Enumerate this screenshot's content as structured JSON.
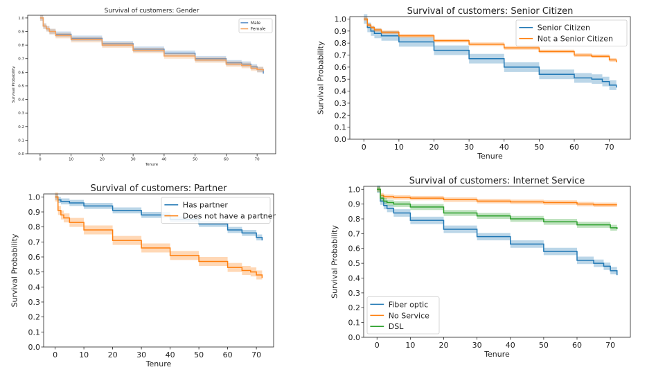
{
  "chart_data": [
    {
      "type": "line",
      "title": "Survival of customers: Gender",
      "xlabel": "Tenure",
      "ylabel": "Survival Probability",
      "xlim": [
        -4,
        76
      ],
      "ylim": [
        0,
        1.02
      ],
      "xticks": [
        0,
        10,
        20,
        30,
        40,
        50,
        60,
        70
      ],
      "yticks": [
        0.0,
        0.1,
        0.2,
        0.3,
        0.4,
        0.5,
        0.6,
        0.7,
        0.8,
        0.9,
        1.0
      ],
      "legend_position": "top-right",
      "series": [
        {
          "name": "Male",
          "color": "#5b8fc7",
          "x": [
            0,
            1,
            2,
            3,
            5,
            10,
            20,
            30,
            40,
            50,
            60,
            65,
            68,
            70,
            72
          ],
          "y": [
            1.0,
            0.94,
            0.92,
            0.9,
            0.88,
            0.85,
            0.81,
            0.77,
            0.74,
            0.7,
            0.67,
            0.66,
            0.64,
            0.62,
            0.59
          ],
          "band": 0.02
        },
        {
          "name": "Female",
          "color": "#f4a15d",
          "x": [
            0,
            1,
            2,
            3,
            5,
            10,
            20,
            30,
            40,
            50,
            60,
            65,
            68,
            70,
            72
          ],
          "y": [
            1.0,
            0.94,
            0.92,
            0.9,
            0.87,
            0.84,
            0.8,
            0.76,
            0.72,
            0.69,
            0.66,
            0.65,
            0.63,
            0.62,
            0.61
          ],
          "band": 0.02
        }
      ]
    },
    {
      "type": "line",
      "title": "Survival of customers: Senior Citizen",
      "xlabel": "Tenure",
      "ylabel": "Survival Probability",
      "xlim": [
        -4,
        76
      ],
      "ylim": [
        0,
        1.02
      ],
      "xticks": [
        0,
        10,
        20,
        30,
        40,
        50,
        60,
        70
      ],
      "yticks": [
        0.0,
        0.1,
        0.2,
        0.3,
        0.4,
        0.5,
        0.6,
        0.7,
        0.8,
        0.9,
        1.0
      ],
      "legend_position": "top-right",
      "series": [
        {
          "name": "Senior Citizen",
          "color": "#1f77b4",
          "x": [
            0,
            1,
            2,
            3,
            5,
            10,
            20,
            30,
            40,
            50,
            60,
            65,
            68,
            70,
            72
          ],
          "y": [
            1.0,
            0.93,
            0.9,
            0.88,
            0.86,
            0.81,
            0.74,
            0.67,
            0.6,
            0.54,
            0.51,
            0.5,
            0.48,
            0.45,
            0.43
          ],
          "band": 0.04
        },
        {
          "name": "Not a Senior Citizen",
          "color": "#ff7f0e",
          "x": [
            0,
            1,
            2,
            3,
            5,
            10,
            20,
            30,
            40,
            50,
            60,
            65,
            70,
            72
          ],
          "y": [
            1.0,
            0.95,
            0.93,
            0.91,
            0.89,
            0.86,
            0.82,
            0.79,
            0.76,
            0.73,
            0.7,
            0.69,
            0.66,
            0.64
          ],
          "band": 0.015
        }
      ]
    },
    {
      "type": "line",
      "title": "Survival of customers: Partner",
      "xlabel": "Tenure",
      "ylabel": "Survival Probability",
      "xlim": [
        -4,
        76
      ],
      "ylim": [
        0,
        1.02
      ],
      "xticks": [
        0,
        10,
        20,
        30,
        40,
        50,
        60,
        70
      ],
      "yticks": [
        0.0,
        0.1,
        0.2,
        0.3,
        0.4,
        0.5,
        0.6,
        0.7,
        0.8,
        0.9,
        1.0
      ],
      "legend_position": "top-right",
      "series": [
        {
          "name": "Has partner",
          "color": "#1f77b4",
          "x": [
            0,
            1,
            2,
            5,
            10,
            20,
            30,
            40,
            50,
            60,
            65,
            70,
            72
          ],
          "y": [
            1.0,
            0.98,
            0.97,
            0.96,
            0.94,
            0.91,
            0.88,
            0.85,
            0.82,
            0.78,
            0.76,
            0.73,
            0.71
          ],
          "band": 0.02
        },
        {
          "name": "Does not have a partner",
          "color": "#ff7f0e",
          "x": [
            0,
            1,
            2,
            3,
            5,
            10,
            20,
            30,
            40,
            50,
            60,
            65,
            68,
            70,
            72
          ],
          "y": [
            1.0,
            0.91,
            0.88,
            0.86,
            0.83,
            0.78,
            0.71,
            0.66,
            0.61,
            0.57,
            0.53,
            0.51,
            0.5,
            0.48,
            0.46
          ],
          "band": 0.03
        }
      ]
    },
    {
      "type": "line",
      "title": "Survival of customers: Internet Service",
      "xlabel": "Tenure",
      "ylabel": "Survival Probability",
      "xlim": [
        -4,
        76
      ],
      "ylim": [
        0,
        1.02
      ],
      "xticks": [
        0,
        10,
        20,
        30,
        40,
        50,
        60,
        70
      ],
      "yticks": [
        0.0,
        0.1,
        0.2,
        0.3,
        0.4,
        0.5,
        0.6,
        0.7,
        0.8,
        0.9,
        1.0
      ],
      "legend_position": "bottom-left",
      "series": [
        {
          "name": "Fiber optic",
          "color": "#1f77b4",
          "x": [
            0,
            1,
            2,
            3,
            5,
            10,
            20,
            30,
            40,
            50,
            60,
            65,
            68,
            70,
            72
          ],
          "y": [
            1.0,
            0.92,
            0.89,
            0.87,
            0.84,
            0.79,
            0.73,
            0.68,
            0.63,
            0.58,
            0.52,
            0.5,
            0.48,
            0.45,
            0.42
          ],
          "band": 0.025
        },
        {
          "name": "No Service",
          "color": "#ff7f0e",
          "x": [
            0,
            1,
            2,
            5,
            10,
            20,
            30,
            40,
            50,
            60,
            65,
            70,
            72
          ],
          "y": [
            1.0,
            0.96,
            0.95,
            0.945,
            0.94,
            0.93,
            0.92,
            0.915,
            0.91,
            0.9,
            0.895,
            0.895,
            0.895
          ],
          "band": 0.015
        },
        {
          "name": "DSL",
          "color": "#2ca02c",
          "x": [
            0,
            1,
            2,
            3,
            5,
            10,
            20,
            30,
            40,
            50,
            60,
            65,
            70,
            72
          ],
          "y": [
            1.0,
            0.94,
            0.92,
            0.91,
            0.9,
            0.88,
            0.84,
            0.82,
            0.8,
            0.78,
            0.76,
            0.76,
            0.74,
            0.73
          ],
          "band": 0.02
        }
      ]
    }
  ]
}
